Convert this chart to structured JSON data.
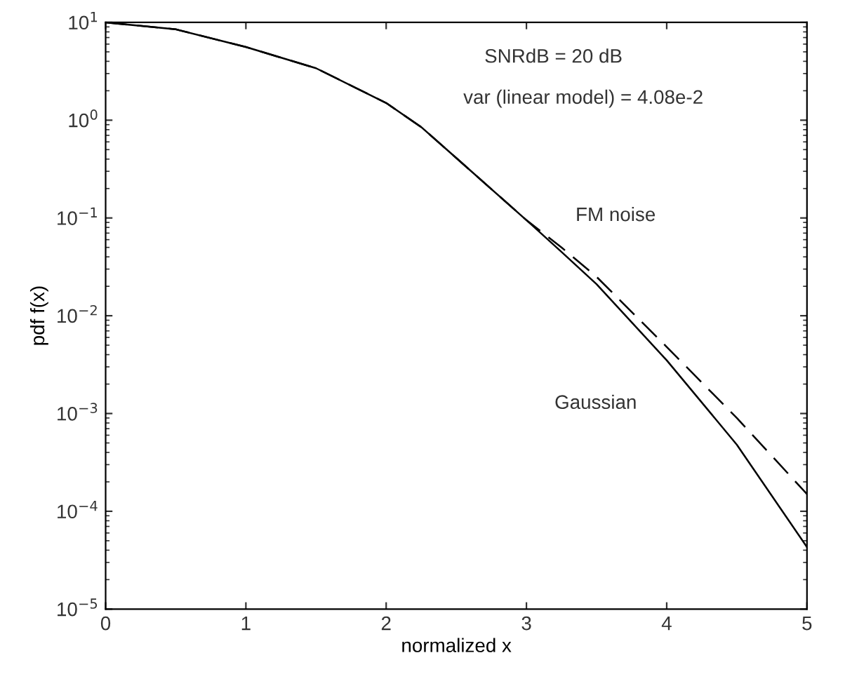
{
  "chart_data": {
    "type": "line",
    "xlabel": "normalized x",
    "ylabel": "pdf f(x)",
    "log": "y",
    "xlim": [
      0,
      5
    ],
    "xticks": [
      0,
      1,
      2,
      3,
      4,
      5
    ],
    "ylim": [
      1e-05,
      10
    ],
    "yticks": [
      {
        "value": 10,
        "label": "10$^{1}$"
      },
      {
        "value": 1,
        "label": "10$^{0}$"
      },
      {
        "value": 0.1,
        "label": "10$^{−1}$"
      },
      {
        "value": 0.01,
        "label": "10$^{−2}$"
      },
      {
        "value": 0.001,
        "label": "10$^{−3}$"
      },
      {
        "value": 0.0001,
        "label": "10$^{−4}$"
      },
      {
        "value": 1e-05,
        "label": "10$^{−5}$"
      }
    ],
    "x": [
      0,
      0.5,
      1,
      1.5,
      2,
      2.25,
      2.5,
      3,
      3.25,
      3.5,
      4,
      4.5,
      5
    ],
    "series": [
      {
        "color": "#000000",
        "line_style": "solid",
        "values": [
          10,
          8.5,
          5.6,
          3.4,
          1.5,
          0.85,
          0.41,
          0.095,
          0.045,
          0.021,
          0.0035,
          0.00048,
          4.3e-05
        ]
      },
      {
        "color": "#000000",
        "line_style": "dashed",
        "values": [
          10,
          8.5,
          5.6,
          3.4,
          1.5,
          0.85,
          0.41,
          0.095,
          0.05,
          0.025,
          0.0048,
          0.0009,
          0.00015
        ]
      }
    ],
    "grid": false,
    "marker": "none",
    "annotations": [
      "SNRdB = 20 dB",
      "var (linear model) = 4.08e-2",
      "FM noise",
      "Gaussian"
    ]
  }
}
